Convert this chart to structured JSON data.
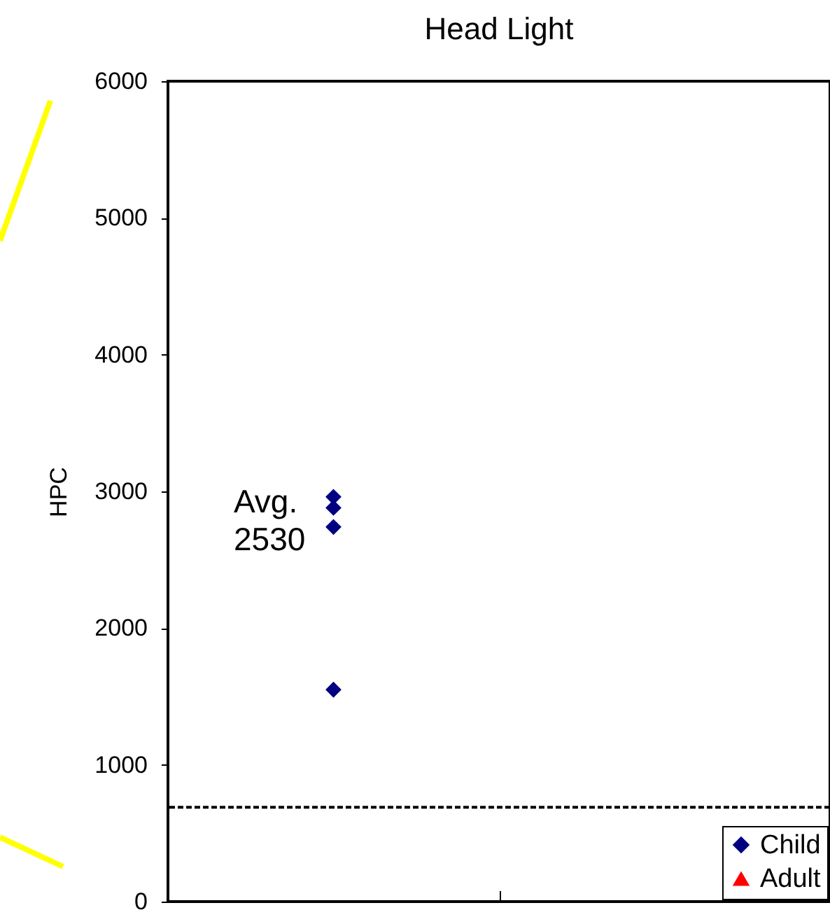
{
  "chart_data": {
    "type": "scatter",
    "title": "Head Light",
    "ylabel": "HPC",
    "categories": [
      null,
      null
    ],
    "ylim": [
      0,
      6000
    ],
    "yticks": [
      0,
      1000,
      2000,
      3000,
      4000,
      5000,
      6000
    ],
    "tick_labels": "y",
    "grid": false,
    "legend": "bottom right",
    "series": [
      {
        "name": "Child",
        "color": "#000080",
        "marker": "diamond",
        "values": [
          2960,
          null
        ]
      },
      {
        "color": "#000080",
        "marker": "diamond",
        "values": [
          2880,
          null
        ]
      },
      {
        "color": "#000080",
        "marker": "diamond",
        "values": [
          2740,
          null
        ]
      },
      {
        "color": "#000080",
        "marker": "diamond",
        "values": [
          1550,
          null
        ]
      },
      {
        "name": "Adult",
        "color": "#ff0000",
        "marker": "triangle",
        "values": [
          null,
          null
        ]
      }
    ],
    "ref_lines": [
      {
        "axis": "y",
        "value": 690,
        "color": "#000000",
        "line_style": "dashed"
      }
    ],
    "annotations": [
      "Avg.\n2530"
    ]
  }
}
